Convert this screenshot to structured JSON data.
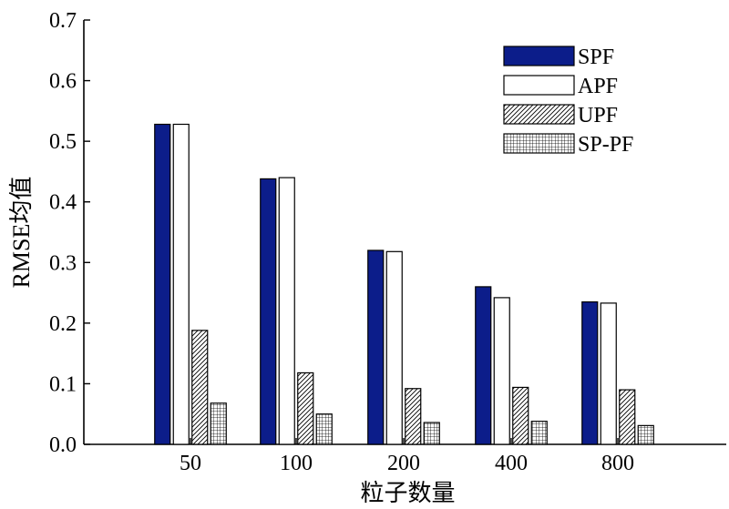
{
  "chart_data": {
    "type": "bar",
    "categories": [
      "50",
      "100",
      "200",
      "400",
      "800"
    ],
    "series": [
      {
        "name": "SPF",
        "values": [
          0.528,
          0.438,
          0.32,
          0.26,
          0.235
        ],
        "color": "#0c1d8a",
        "pattern": "solid"
      },
      {
        "name": "APF",
        "values": [
          0.528,
          0.44,
          0.318,
          0.242,
          0.233
        ],
        "color": "#ffffff",
        "pattern": "none"
      },
      {
        "name": "UPF",
        "values": [
          0.188,
          0.118,
          0.092,
          0.094,
          0.09
        ],
        "color": "#ffffff",
        "pattern": "diagonal"
      },
      {
        "name": "SP-PF",
        "values": [
          0.068,
          0.05,
          0.036,
          0.038,
          0.031
        ],
        "color": "#ffffff",
        "pattern": "grid"
      }
    ],
    "xlabel": "粒子数量",
    "ylabel": "RMSE均值",
    "ylim": [
      0,
      0.7
    ],
    "yticks": [
      "0.0",
      "0.1",
      "0.2",
      "0.3",
      "0.4",
      "0.5",
      "0.6",
      "0.7"
    ],
    "grid": false,
    "legend_position": "top-right"
  }
}
